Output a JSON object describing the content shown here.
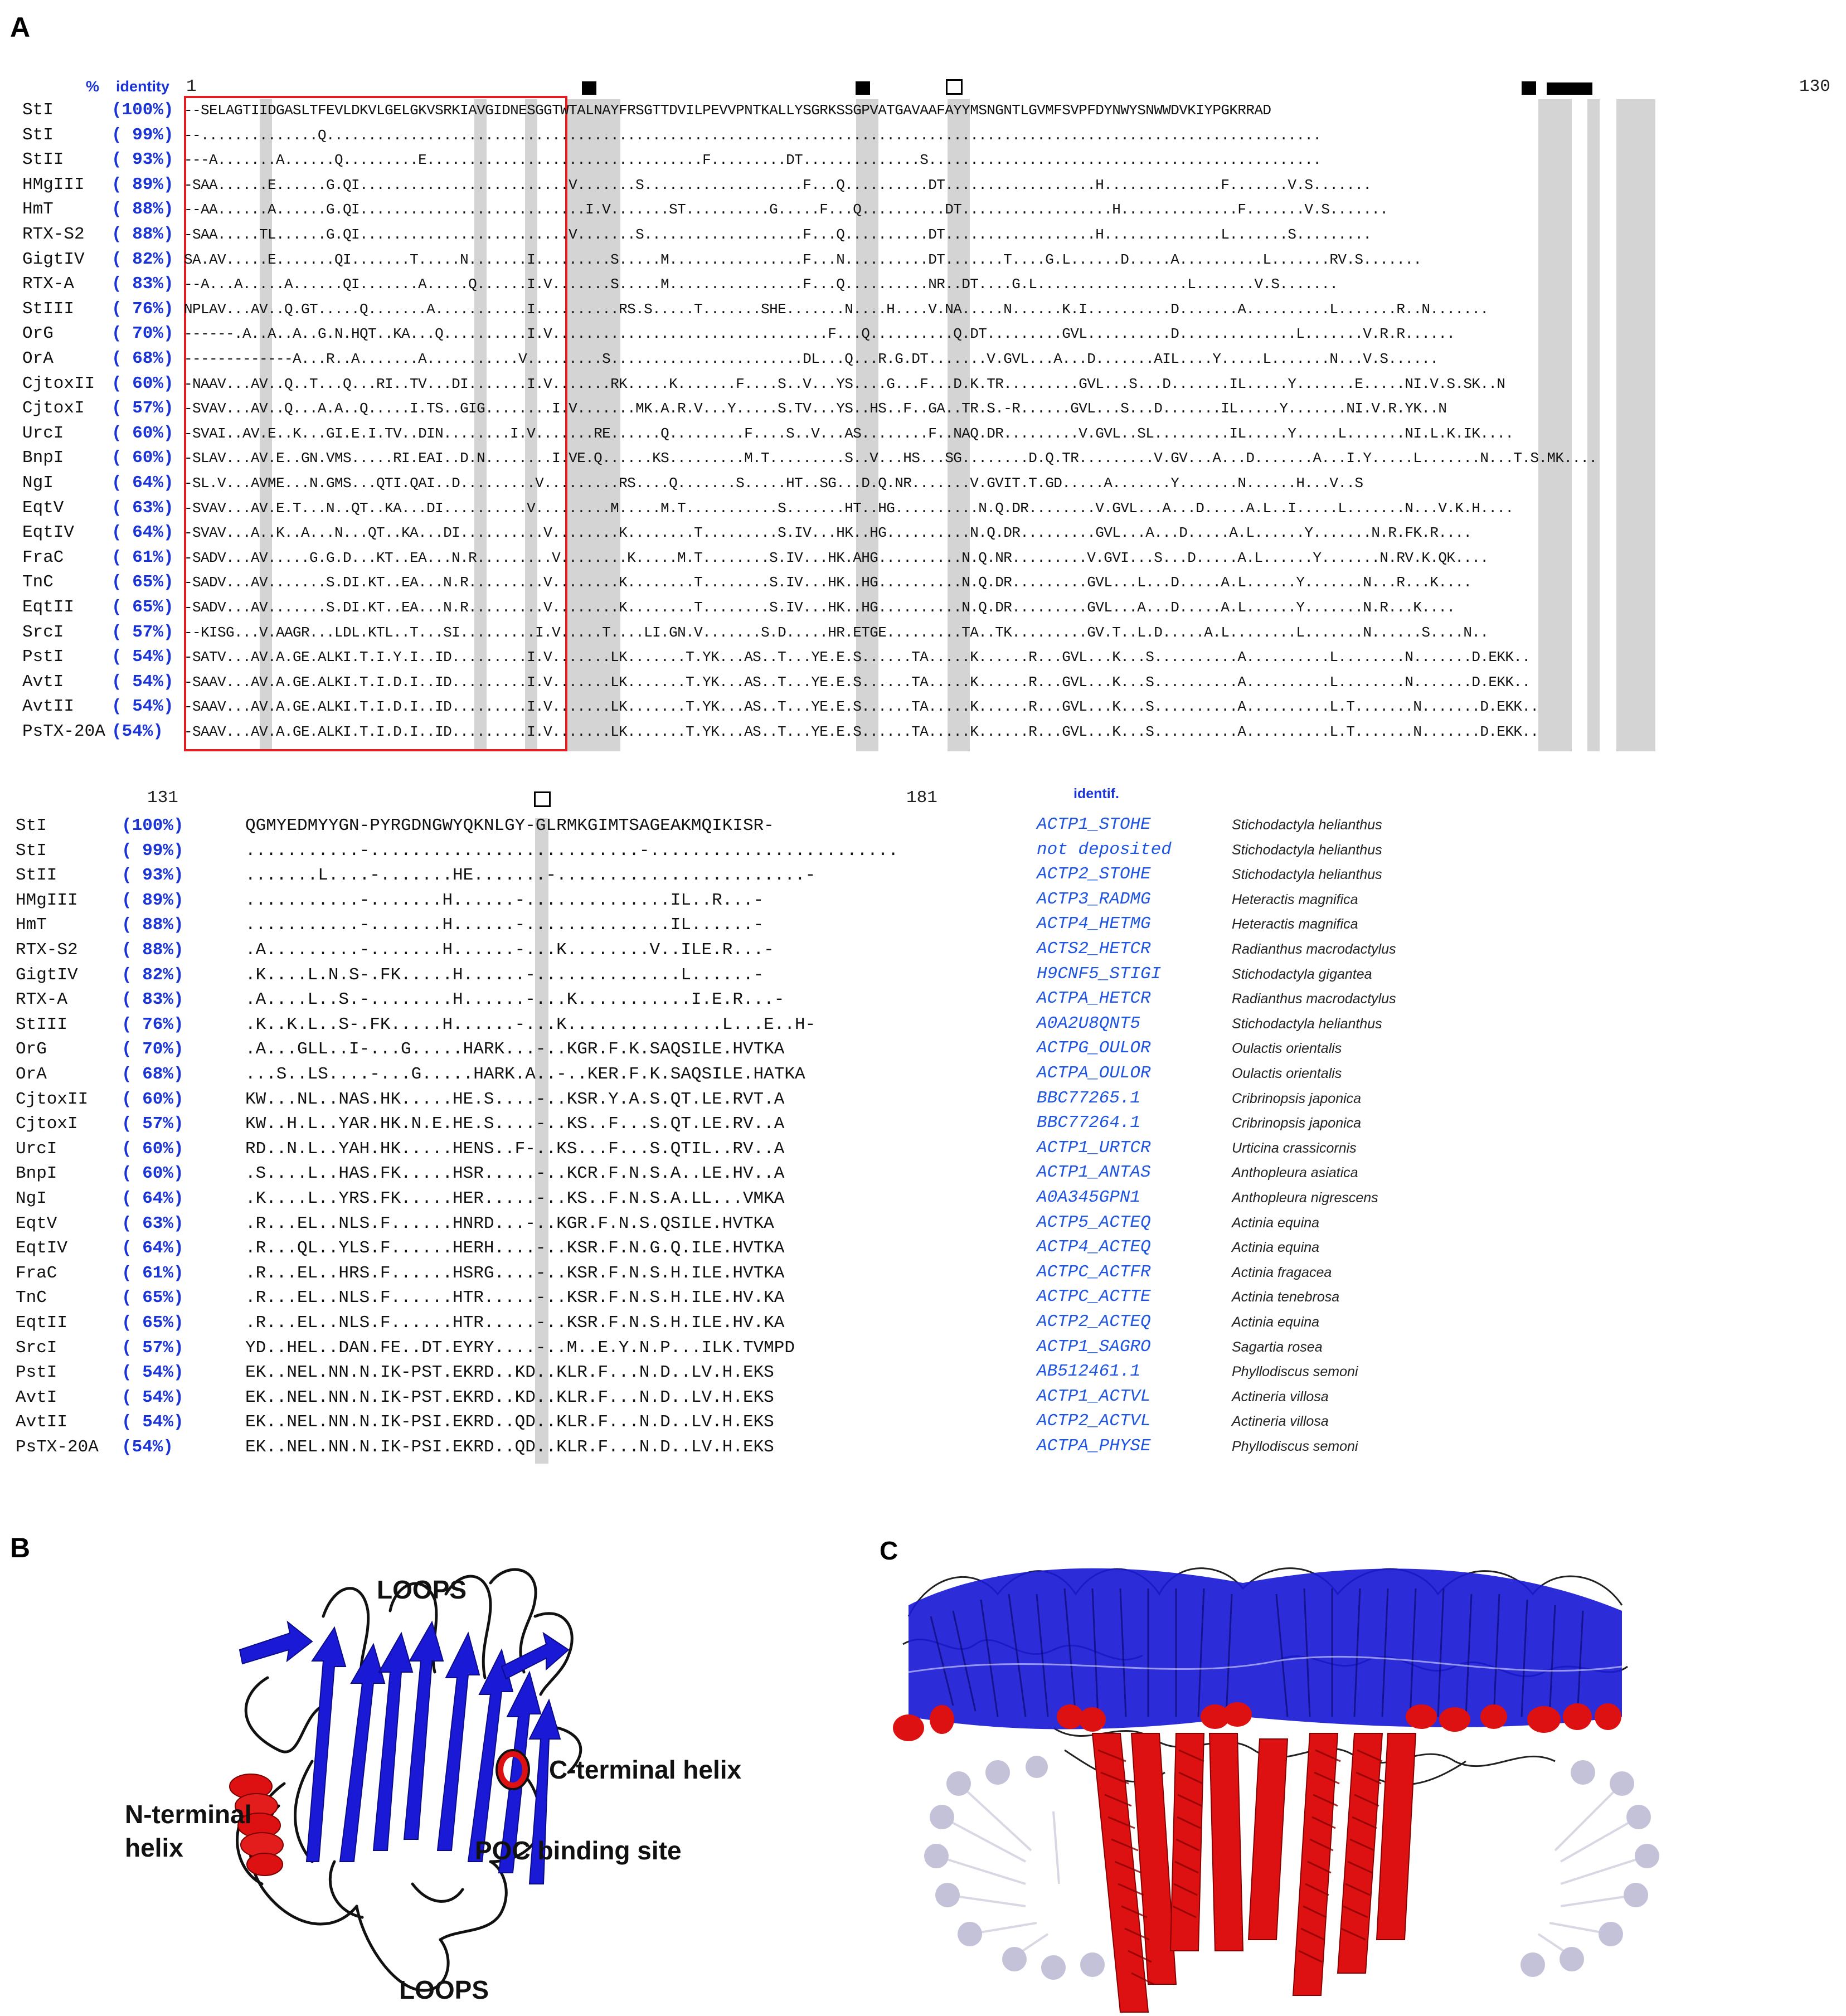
{
  "figure": {
    "panel_labels": {
      "a": "A",
      "b": "B",
      "c": "C"
    },
    "alignment_top": {
      "header_percent": "%",
      "header_identity": "identity",
      "pos_start": "1",
      "pos_end": "130",
      "rows": [
        {
          "name": "StI",
          "id": "(100%)",
          "seq": "--SELAGTIIDGASLTFEVLDKVLGELGKVSRKIAVGIDNESGGTWTALNAYFRSGTTDVILPEVVPNTKALLYSGRKSSGPVATGAVAAFAYYMSNGNTLGVMFSVPFDYNWYSNWWDVKIYPGKRRAD"
        },
        {
          "name": "StI",
          "id": "( 99%)",
          "seq": "--..............Q......................................................................................................................."
        },
        {
          "name": "StII",
          "id": "( 93%)",
          "seq": "---A.......A......Q.........E.................................F.........DT..............S..............................................."
        },
        {
          "name": "HMgIII",
          "id": "( 89%)",
          "seq": "-SAA......E......G.QI.........................V.......S...................F...Q..........DT..................H..............F.......V.S......."
        },
        {
          "name": "HmT",
          "id": "( 88%)",
          "seq": "--AA......A......G.QI...........................I.V.......ST..........G.....F...Q..........DT..................H..............F.......V.S......."
        },
        {
          "name": "RTX-S2",
          "id": "( 88%)",
          "seq": "-SAA.....TL......G.QI.........................V.......S...................F...Q..........DT..................H..............L.......S........."
        },
        {
          "name": "GigtIV",
          "id": "( 82%)",
          "seq": "SA.AV.....E.......QI.......T.....N.......I.........S.....M................F...N..........DT.......T....G.L......D.....A..........L.......RV.S......."
        },
        {
          "name": "RTX-A",
          "id": "( 83%)",
          "seq": "--A...A.....A......QI.......A.....Q......I.V.......S.....M................F...Q..........NR..DT....G.L..................L.......V.S......."
        },
        {
          "name": "StIII",
          "id": "( 76%)",
          "seq": "NPLAV...AV..Q.GT.....Q.......A...........I..........RS.S.....T.......SHE.......N....H....V.NA.....N......K.I..........D.......A..........L.......R..N......."
        },
        {
          "name": "OrG",
          "id": "( 70%)",
          "seq": "------.A..A..A..G.N.HQT..KA...Q..........I.V.................................F...Q..........Q.DT.........GVL..........D..............L.......V.R.R......"
        },
        {
          "name": "OrA",
          "id": "( 68%)",
          "seq": "-------------A...R..A.......A...........V.........S.......................DL...Q...R.G.DT.......V.GVL...A...D.......AIL....Y.....L.......N...V.S......"
        },
        {
          "name": "CjtoxII",
          "id": "( 60%)",
          "seq": "-NAAV...AV..Q..T...Q...RI..TV...DI.......I.V.......RK.....K.......F....S..V...YS....G...F...D.K.TR.........GVL...S...D.......IL.....Y.......E.....NI.V.S.SK..N"
        },
        {
          "name": "CjtoxI",
          "id": "( 57%)",
          "seq": "-SVAV...AV..Q...A.A..Q.....I.TS..GIG........I.V.......MK.A.R.V...Y.....S.TV...YS..HS..F..GA..TR.S.-R......GVL...S...D.......IL.....Y.......NI.V.R.YK..N"
        },
        {
          "name": "UrcI",
          "id": "( 60%)",
          "seq": "-SVAI..AV.E..K...GI.E.I.TV..DIN........I.V.......RE......Q.........F....S..V...AS........F..NAQ.DR.........V.GVL..SL.........IL.....Y.....L.......NI.L.K.IK...."
        },
        {
          "name": "BnpI",
          "id": "( 60%)",
          "seq": "-SLAV...AV.E..GN.VMS.....RI.EAI..D.N........I.VE.Q......KS.........M.T.........S..V...HS...SG........D.Q.TR.........V.GV...A...D.......A...I.Y.....L.......N...T.S.MK...."
        },
        {
          "name": "NgI",
          "id": "( 64%)",
          "seq": "-SL.V...AVME...N.GMS...QTI.QAI..D.........V.........RS....Q.......S.....HT..SG...D.Q.NR.......V.GVIT.T.GD.....A.......Y.......N......H...V..S"
        },
        {
          "name": "EqtV",
          "id": "( 63%)",
          "seq": "-SVAV...AV.E.T...N..QT..KA...DI..........V.........M.....M.T...........S.......HT..HG..........N.Q.DR........V.GVL...A...D.....A.L..I.....L.......N...V.K.H...."
        },
        {
          "name": "EqtIV",
          "id": "( 64%)",
          "seq": "-SVAV...A..K..A...N...QT..KA...DI..........V........K........T.........S.IV...HK..HG..........N.Q.DR.........GVL...A...D.....A.L......Y.......N.R.FK.R...."
        },
        {
          "name": "FraC",
          "id": "( 61%)",
          "seq": "-SADV...AV.....G.G.D...KT..EA...N.R.........V........K.....M.T........S.IV...HK.AHG..........N.Q.NR.........V.GVI...S...D.....A.L......Y.......N.RV.K.QK...."
        },
        {
          "name": "TnC",
          "id": "( 65%)",
          "seq": "-SADV...AV.......S.DI.KT..EA...N.R.........V........K........T........S.IV...HK..HG..........N.Q.DR.........GVL...L...D.....A.L......Y.......N...R...K...."
        },
        {
          "name": "EqtII",
          "id": "( 65%)",
          "seq": "-SADV...AV.......S.DI.KT..EA...N.R.........V........K........T........S.IV...HK..HG..........N.Q.DR.........GVL...A...D.....A.L......Y.......N.R...K...."
        },
        {
          "name": "SrcI",
          "id": "( 57%)",
          "seq": "--KISG...V.AAGR...LDL.KTL..T...SI.........I.V.....T....LI.GN.V.......S.D.....HR.ETGE.........TA..TK.........GV.T..L.D.....A.L........L.......N......S....N.."
        },
        {
          "name": "PstI",
          "id": "( 54%)",
          "seq": "-SATV...AV.A.GE.ALKI.T.I.Y.I..ID.........I.V.......LK.......T.YK...AS..T...YE.E.S......TA.....K......R...GVL...K...S..........A..........L........N.......D.EKK.."
        },
        {
          "name": "AvtI",
          "id": "( 54%)",
          "seq": "-SAAV...AV.A.GE.ALKI.T.I.D.I..ID.........I.V.......LK.......T.YK...AS..T...YE.E.S......TA.....K......R...GVL...K...S..........A..........L........N.......D.EKK.."
        },
        {
          "name": "AvtII",
          "id": "( 54%)",
          "seq": "-SAAV...AV.A.GE.ALKI.T.I.D.I..ID.........I.V.......LK.......T.YK...AS..T...YE.E.S......TA.....K......R...GVL...K...S..........A..........L.T.......N.......D.EKK.."
        },
        {
          "name": "PsTX-20A",
          "id": "(54%)",
          "seq": "-SAAV...AV.A.GE.ALKI.T.I.D.I..ID.........I.V.......LK.......T.YK...AS..T...YE.E.S......TA.....K......R...GVL...K...S..........A..........L.T.......N.......D.EKK.."
        }
      ]
    },
    "alignment_bottom": {
      "pos_131": "131",
      "pos_181": "181",
      "identif_header": "identif.",
      "rows": [
        {
          "name": "StI",
          "id": "(100%)",
          "seq": "QGMYEDMYYGN-PYRGDNGWYQKNLGY-GLRMKGIMTSAGEAKMQIKISR-",
          "acc": "ACTP1_STOHE",
          "sp": "Stichodactyla helianthus"
        },
        {
          "name": "StI",
          "id": "( 99%)",
          "seq": "...........-..........................-........................",
          "acc": "not deposited",
          "sp": "Stichodactyla helianthus"
        },
        {
          "name": "StII",
          "id": "( 93%)",
          "seq": ".......L....-.......HE.......-........................-",
          "acc": "ACTP2_STOHE",
          "sp": "Stichodactyla helianthus"
        },
        {
          "name": "HMgIII",
          "id": "( 89%)",
          "seq": "...........-.......H......-..............IL..R...-",
          "acc": "ACTP3_RADMG",
          "sp": "Heteractis magnifica"
        },
        {
          "name": "HmT",
          "id": "( 88%)",
          "seq": "...........-.......H......-..............IL......-",
          "acc": "ACTP4_HETMG",
          "sp": "Heteractis magnifica"
        },
        {
          "name": "RTX-S2",
          "id": "( 88%)",
          "seq": ".A.........-.......H......-...K........V..ILE.R...-",
          "acc": "ACTS2_HETCR",
          "sp": "Radianthus macrodactylus"
        },
        {
          "name": "GigtIV",
          "id": "( 82%)",
          "seq": ".K....L.N.S-.FK.....H......-..............L......-",
          "acc": "H9CNF5_STIGI",
          "sp": "Stichodactyla gigantea"
        },
        {
          "name": "RTX-A",
          "id": "( 83%)",
          "seq": ".A....L..S.-........H......-...K...........I.E.R...-",
          "acc": "ACTPA_HETCR",
          "sp": "Radianthus macrodactylus"
        },
        {
          "name": "StIII",
          "id": "( 76%)",
          "seq": ".K..K.L..S-.FK.....H......-...K...............L...E..H-",
          "acc": "A0A2U8QNT5",
          "sp": "Stichodactyla helianthus"
        },
        {
          "name": "OrG",
          "id": "( 70%)",
          "seq": ".A...GLL..I-...G.....HARK...-..KGR.F.K.SAQSILE.HVTKA",
          "acc": "ACTPG_OULOR",
          "sp": "Oulactis orientalis"
        },
        {
          "name": "OrA",
          "id": "( 68%)",
          "seq": "...S..LS....-...G.....HARK.A..-..KER.F.K.SAQSILE.HATKA",
          "acc": "ACTPA_OULOR",
          "sp": "Oulactis orientalis"
        },
        {
          "name": "CjtoxII",
          "id": "( 60%)",
          "seq": "KW...NL..NAS.HK.....HE.S....-..KSR.Y.A.S.QT.LE.RVT.A",
          "acc": "BBC77265.1",
          "sp": "Cribrinopsis japonica"
        },
        {
          "name": "CjtoxI",
          "id": "( 57%)",
          "seq": "KW..H.L..YAR.HK.N.E.HE.S....-..KS..F...S.QT.LE.RV..A",
          "acc": "BBC77264.1",
          "sp": "Cribrinopsis japonica"
        },
        {
          "name": "UrcI",
          "id": "( 60%)",
          "seq": "RD..N.L..YAH.HK.....HENS..F-..KS...F...S.QTIL..RV..A",
          "acc": "ACTP1_URTCR",
          "sp": "Urticina crassicornis"
        },
        {
          "name": "BnpI",
          "id": "( 60%)",
          "seq": ".S....L..HAS.FK.....HSR.....-..KCR.F.N.S.A..LE.HV..A",
          "acc": "ACTP1_ANTAS",
          "sp": "Anthopleura asiatica"
        },
        {
          "name": "NgI",
          "id": "( 64%)",
          "seq": ".K....L..YRS.FK.....HER.....-..KS..F.N.S.A.LL...VMKA",
          "acc": "A0A345GPN1",
          "sp": "Anthopleura nigrescens"
        },
        {
          "name": "EqtV",
          "id": "( 63%)",
          "seq": ".R...EL..NLS.F......HNRD...-..KGR.F.N.S.QSILE.HVTKA",
          "acc": "ACTP5_ACTEQ",
          "sp": "Actinia equina"
        },
        {
          "name": "EqtIV",
          "id": "( 64%)",
          "seq": ".R...QL..YLS.F......HERH....-..KSR.F.N.G.Q.ILE.HVTKA",
          "acc": "ACTP4_ACTEQ",
          "sp": "Actinia equina"
        },
        {
          "name": "FraC",
          "id": "( 61%)",
          "seq": ".R...EL..HRS.F......HSRG....-..KSR.F.N.S.H.ILE.HVTKA",
          "acc": "ACTPC_ACTFR",
          "sp": "Actinia fragacea"
        },
        {
          "name": "TnC",
          "id": "( 65%)",
          "seq": ".R...EL..NLS.F......HTR.....-..KSR.F.N.S.H.ILE.HV.KA",
          "acc": "ACTPC_ACTTE",
          "sp": "Actinia tenebrosa"
        },
        {
          "name": "EqtII",
          "id": "( 65%)",
          "seq": ".R...EL..NLS.F......HTR.....-..KSR.F.N.S.H.ILE.HV.KA",
          "acc": "ACTP2_ACTEQ",
          "sp": "Actinia equina"
        },
        {
          "name": "SrcI",
          "id": "( 57%)",
          "seq": "YD..HEL..DAN.FE..DT.EYRY....-..M..E.Y.N.P...ILK.TVMPD",
          "acc": "ACTP1_SAGRO",
          "sp": "Sagartia rosea"
        },
        {
          "name": "PstI",
          "id": "( 54%)",
          "seq": "EK..NEL.NN.N.IK-PST.EKRD..KD..KLR.F...N.D..LV.H.EKS",
          "acc": "AB512461.1",
          "sp": "Phyllodiscus semoni"
        },
        {
          "name": "AvtI",
          "id": "( 54%)",
          "seq": "EK..NEL.NN.N.IK-PST.EKRD..KD..KLR.F...N.D..LV.H.EKS",
          "acc": "ACTP1_ACTVL",
          "sp": "Actineria villosa"
        },
        {
          "name": "AvtII",
          "id": "( 54%)",
          "seq": "EK..NEL.NN.N.IK-PSI.EKRD..QD..KLR.F...N.D..LV.H.EKS",
          "acc": "ACTP2_ACTVL",
          "sp": "Actineria villosa"
        },
        {
          "name": "PsTX-20A",
          "id": "(54%)",
          "seq": "EK..NEL.NN.N.IK-PSI.EKRD..QD..KLR.F...N.D..LV.H.EKS",
          "acc": "ACTPA_PHYSE",
          "sp": "Phyllodiscus semoni"
        }
      ]
    },
    "panel_b_labels": {
      "loops_top": "LOOPS",
      "c_terminal": "C-terminal helix",
      "n_terminal": "N-terminal\nhelix",
      "poc": "POC binding site",
      "loops_bottom": "LOOPS"
    },
    "colors": {
      "helix": "#dd1111",
      "sheet": "#1a1ad6",
      "identity_blue": "#1a33d6",
      "shade": "#d4d4d4",
      "box_red": "#e02020"
    }
  }
}
